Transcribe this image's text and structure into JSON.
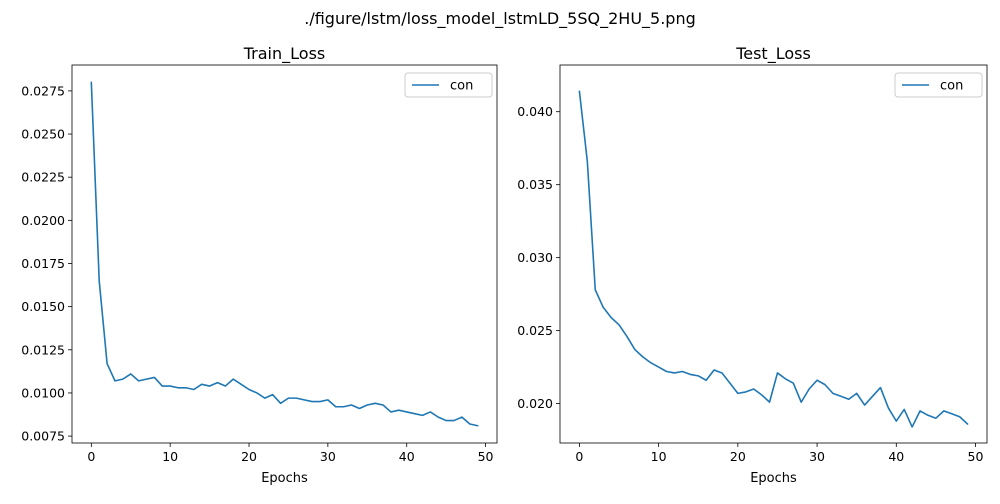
{
  "figure": {
    "suptitle": "./figure/lstm/loss_model_lstmLD_5SQ_2HU_5.png"
  },
  "chart_data": [
    {
      "type": "line",
      "title": "Train_Loss",
      "xlabel": "Epochs",
      "ylabel": "",
      "xlim": [
        -2.45,
        51.45
      ],
      "ylim": [
        0.0071,
        0.029
      ],
      "xticks": [
        0,
        10,
        20,
        30,
        40,
        50
      ],
      "xtick_labels": [
        "0",
        "10",
        "20",
        "30",
        "40",
        "50"
      ],
      "yticks": [
        0.0075,
        0.01,
        0.0125,
        0.015,
        0.0175,
        0.02,
        0.0225,
        0.025,
        0.0275
      ],
      "ytick_labels": [
        "0.0075",
        "0.0100",
        "0.0125",
        "0.0150",
        "0.0175",
        "0.0200",
        "0.0225",
        "0.0250",
        "0.0275"
      ],
      "legend_position": "top-right",
      "grid": false,
      "series": [
        {
          "name": "con",
          "color": "#1f77b4",
          "x": [
            0,
            1,
            2,
            3,
            4,
            5,
            6,
            7,
            8,
            9,
            10,
            11,
            12,
            13,
            14,
            15,
            16,
            17,
            18,
            19,
            20,
            21,
            22,
            23,
            24,
            25,
            26,
            27,
            28,
            29,
            30,
            31,
            32,
            33,
            34,
            35,
            36,
            37,
            38,
            39,
            40,
            41,
            42,
            43,
            44,
            45,
            46,
            47,
            48,
            49
          ],
          "values": [
            0.028,
            0.0165,
            0.0117,
            0.0107,
            0.0108,
            0.0111,
            0.0107,
            0.0108,
            0.0109,
            0.0104,
            0.0104,
            0.0103,
            0.0103,
            0.0102,
            0.0105,
            0.0104,
            0.0106,
            0.0104,
            0.0108,
            0.0105,
            0.0102,
            0.01,
            0.0097,
            0.0099,
            0.0094,
            0.0097,
            0.0097,
            0.0096,
            0.0095,
            0.0095,
            0.0096,
            0.0092,
            0.0092,
            0.0093,
            0.0091,
            0.0093,
            0.0094,
            0.0093,
            0.0089,
            0.009,
            0.0089,
            0.0088,
            0.0087,
            0.0089,
            0.0086,
            0.0084,
            0.0084,
            0.0086,
            0.0082,
            0.0081
          ]
        }
      ]
    },
    {
      "type": "line",
      "title": "Test_Loss",
      "xlabel": "Epochs",
      "ylabel": "",
      "xlim": [
        -2.45,
        51.45
      ],
      "ylim": [
        0.0173,
        0.0432
      ],
      "xticks": [
        0,
        10,
        20,
        30,
        40,
        50
      ],
      "xtick_labels": [
        "0",
        "10",
        "20",
        "30",
        "40",
        "50"
      ],
      "yticks": [
        0.02,
        0.025,
        0.03,
        0.035,
        0.04
      ],
      "ytick_labels": [
        "0.020",
        "0.025",
        "0.030",
        "0.035",
        "0.040"
      ],
      "legend_position": "top-right",
      "grid": false,
      "series": [
        {
          "name": "con",
          "color": "#1f77b4",
          "x": [
            0,
            1,
            2,
            3,
            4,
            5,
            6,
            7,
            8,
            9,
            10,
            11,
            12,
            13,
            14,
            15,
            16,
            17,
            18,
            19,
            20,
            21,
            22,
            23,
            24,
            25,
            26,
            27,
            28,
            29,
            30,
            31,
            32,
            33,
            34,
            35,
            36,
            37,
            38,
            39,
            40,
            41,
            42,
            43,
            44,
            45,
            46,
            47,
            48,
            49
          ],
          "values": [
            0.0414,
            0.0366,
            0.0278,
            0.0266,
            0.0259,
            0.0254,
            0.0246,
            0.0237,
            0.0232,
            0.0228,
            0.0225,
            0.0222,
            0.0221,
            0.0222,
            0.022,
            0.0219,
            0.0216,
            0.0223,
            0.0221,
            0.0214,
            0.0207,
            0.0208,
            0.021,
            0.0206,
            0.0201,
            0.0221,
            0.0217,
            0.0214,
            0.0201,
            0.021,
            0.0216,
            0.0213,
            0.0207,
            0.0205,
            0.0203,
            0.0207,
            0.0199,
            0.0205,
            0.0211,
            0.0197,
            0.0188,
            0.0196,
            0.0184,
            0.0195,
            0.0192,
            0.019,
            0.0195,
            0.0193,
            0.0191,
            0.0186
          ]
        }
      ]
    }
  ]
}
